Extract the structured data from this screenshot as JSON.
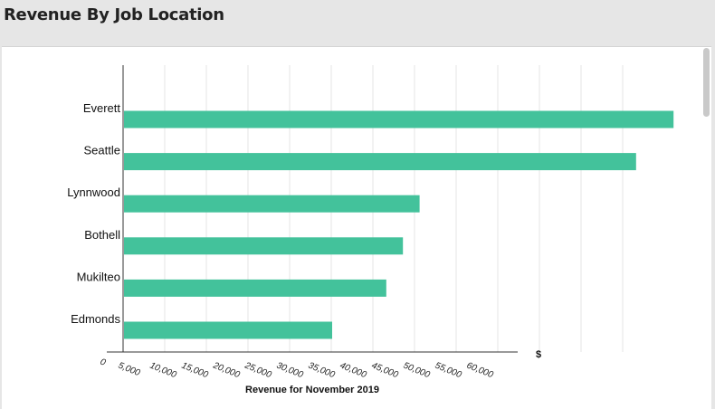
{
  "header": {
    "title": "Revenue By Job Location"
  },
  "chart_data": {
    "type": "bar",
    "orientation": "horizontal",
    "categories": [
      "Everett",
      "Seattle",
      "Lynnwood",
      "Bothell",
      "Mukilteo",
      "Edmonds"
    ],
    "values": [
      66000,
      61500,
      35500,
      33500,
      31500,
      25000
    ],
    "xlabel": "Revenue for November 2019",
    "ylabel": "",
    "x_unit_label": "$",
    "x_ticks": [
      "0",
      "5,000",
      "10,000",
      "15,000",
      "20,000",
      "25,000",
      "30,000",
      "35,000",
      "40,000",
      "45,000",
      "50,000",
      "55,000",
      "60,000"
    ],
    "xlim": [
      0,
      65000
    ],
    "grid": true,
    "bar_color": "#43c29b",
    "gridline_color": "#e4e4e4"
  }
}
